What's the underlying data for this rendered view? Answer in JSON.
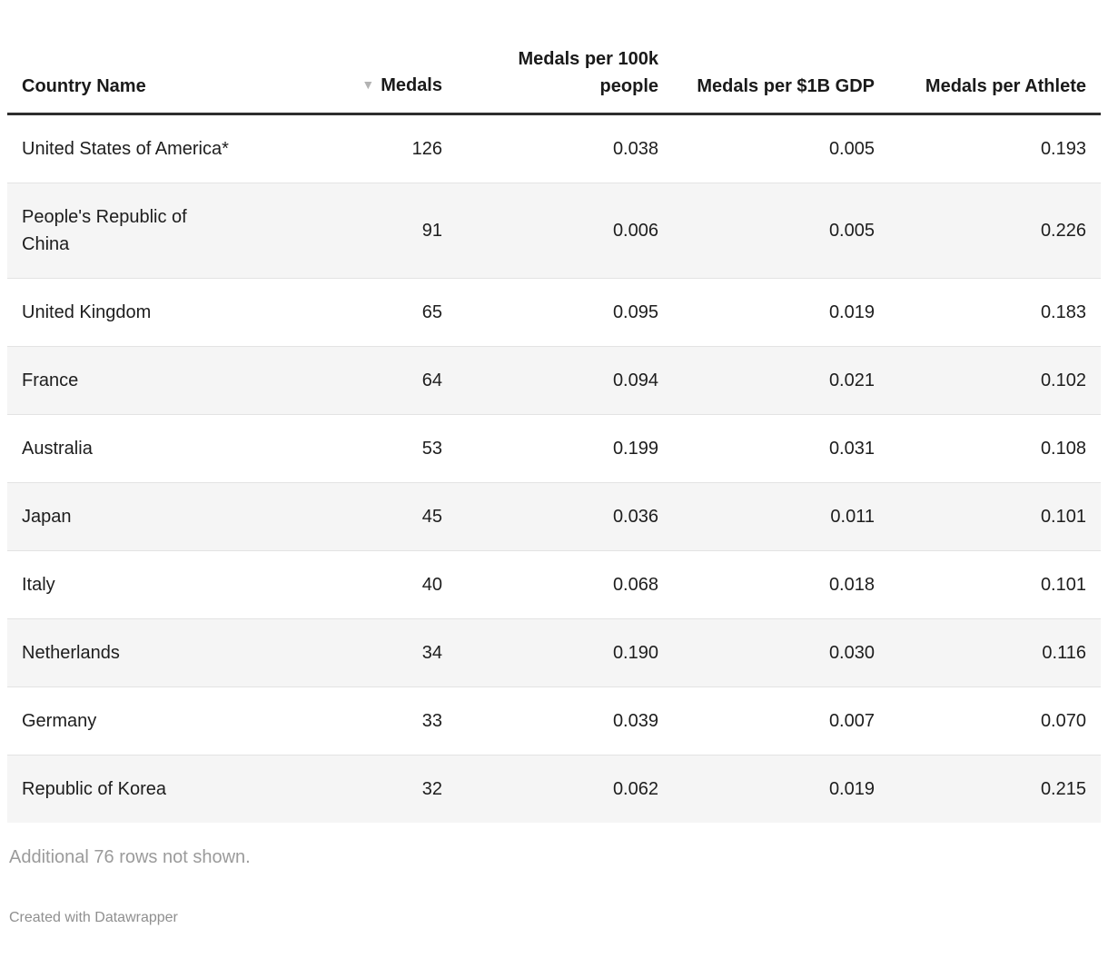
{
  "colors": {
    "row_stripe": "#f5f5f5",
    "header_border": "#2e2e2e",
    "row_separator": "#e3e3e3",
    "text": "#1d1d1d",
    "muted_text": "#9b9b9b",
    "sort_icon": "#b3b3b3"
  },
  "icons": {
    "sort_descending": "▼"
  },
  "table": {
    "columns": [
      {
        "label": "Country Name",
        "align": "left"
      },
      {
        "label": "Medals",
        "align": "right",
        "sorted": "descending"
      },
      {
        "label": "Medals per 100k people",
        "align": "right"
      },
      {
        "label": "Medals per $1B GDP",
        "align": "right"
      },
      {
        "label": "Medals per Athlete",
        "align": "right"
      }
    ],
    "rows": [
      [
        "United States of America*",
        "126",
        "0.038",
        "0.005",
        "0.193"
      ],
      [
        "People's Republic of China",
        "91",
        "0.006",
        "0.005",
        "0.226"
      ],
      [
        "United Kingdom",
        "65",
        "0.095",
        "0.019",
        "0.183"
      ],
      [
        "France",
        "64",
        "0.094",
        "0.021",
        "0.102"
      ],
      [
        "Australia",
        "53",
        "0.199",
        "0.031",
        "0.108"
      ],
      [
        "Japan",
        "45",
        "0.036",
        "0.011",
        "0.101"
      ],
      [
        "Italy",
        "40",
        "0.068",
        "0.018",
        "0.101"
      ],
      [
        "Netherlands",
        "34",
        "0.190",
        "0.030",
        "0.116"
      ],
      [
        "Germany",
        "33",
        "0.039",
        "0.007",
        "0.070"
      ],
      [
        "Republic of Korea",
        "32",
        "0.062",
        "0.019",
        "0.215"
      ]
    ]
  },
  "footer": {
    "rows_note": "Additional 76 rows not shown.",
    "attribution": "Created with Datawrapper"
  }
}
